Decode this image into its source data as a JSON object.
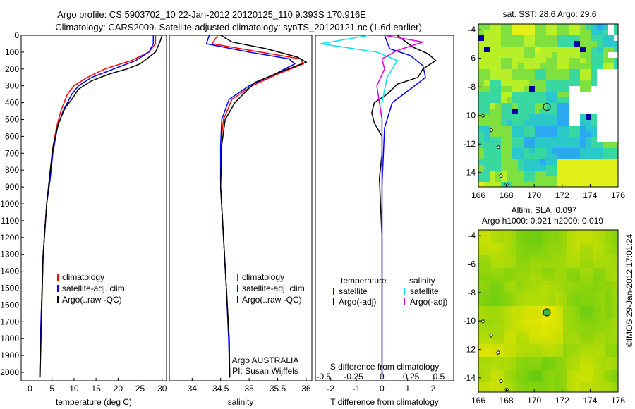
{
  "header": {
    "line1": "Argo profile: CS 5903702_10 22-Jan-2012 20120125_110 9.393S 170.916E",
    "line2": "Climatology: CARS2009. Satellite-adjusted climatology: synTS_20120121.nc (1.6d earlier)"
  },
  "colors": {
    "climatology": "#ff0000",
    "satellite": "#0000ff",
    "argo": "#000000",
    "salinity_sat": "#00e5ee",
    "salinity_argo": "#e000e0"
  },
  "chart_data": [
    {
      "type": "line",
      "xlabel": "temperature (deg C)",
      "ylim": [
        2050,
        0
      ],
      "xlim": [
        -2,
        31
      ],
      "xticks": [
        0,
        5,
        10,
        15,
        20,
        25,
        30
      ],
      "yticks": [
        0,
        100,
        200,
        300,
        400,
        500,
        600,
        700,
        800,
        900,
        1000,
        1100,
        1200,
        1300,
        1400,
        1500,
        1600,
        1700,
        1800,
        1900,
        2000
      ],
      "legend": [
        "climatology",
        "satellite-adj. clim.",
        "Argo(..raw -QC)"
      ],
      "series": [
        {
          "name": "climatology",
          "color": "#ff0000",
          "x": [
            28.5,
            28.5,
            27,
            23,
            17,
            13,
            10,
            8.5,
            7,
            6,
            5,
            4.5,
            3.8,
            3,
            2.5,
            2.2
          ],
          "y": [
            0,
            50,
            100,
            150,
            200,
            250,
            300,
            350,
            450,
            550,
            700,
            850,
            1000,
            1300,
            1700,
            2030
          ]
        },
        {
          "name": "satellite-adj. clim.",
          "color": "#0000ff",
          "x": [
            28,
            28,
            27,
            24,
            19,
            14,
            11,
            9.5,
            7.5,
            6.2,
            5.2,
            4.6,
            3.8,
            3,
            2.5,
            2.2
          ],
          "y": [
            0,
            50,
            100,
            150,
            200,
            250,
            300,
            350,
            450,
            550,
            700,
            850,
            1000,
            1300,
            1700,
            2030
          ]
        },
        {
          "name": "Argo(..raw -QC)",
          "color": "#000000",
          "x": [
            30,
            29.5,
            28.5,
            27,
            25,
            22,
            18,
            14,
            11,
            9.5,
            8,
            6.5,
            5.3,
            4.6,
            3.8,
            3,
            2.6,
            2.3
          ],
          "y": [
            0,
            40,
            100,
            130,
            170,
            200,
            230,
            270,
            320,
            380,
            430,
            520,
            650,
            800,
            1000,
            1300,
            1700,
            2030
          ]
        }
      ]
    },
    {
      "type": "line",
      "xlabel": "salinity",
      "ylim": [
        2050,
        0
      ],
      "xlim": [
        33.6,
        36.1
      ],
      "xticks": [
        34,
        34.5,
        35,
        35.5,
        36
      ],
      "legend": [
        "climatology",
        "satellite-adj. clim.",
        "Argo(..raw -QC)"
      ],
      "annotation": [
        "Argo AUSTRALIA",
        "PI: Susan Wijffels"
      ],
      "series": [
        {
          "name": "climatology",
          "color": "#ff0000",
          "x": [
            34.45,
            34.35,
            35.2,
            35.9,
            35.95,
            35.5,
            35.05,
            34.7,
            34.55,
            34.5,
            34.5,
            34.55,
            34.6,
            34.65,
            34.66
          ],
          "y": [
            0,
            50,
            100,
            140,
            170,
            230,
            300,
            380,
            500,
            650,
            900,
            1200,
            1500,
            1800,
            2030
          ]
        },
        {
          "name": "satellite-adj. clim.",
          "color": "#0000ff",
          "x": [
            34.3,
            34.25,
            35.0,
            35.7,
            35.8,
            35.45,
            35.0,
            34.65,
            34.52,
            34.5,
            34.5,
            34.55,
            34.6,
            34.64,
            34.66
          ],
          "y": [
            0,
            50,
            100,
            140,
            170,
            230,
            300,
            380,
            500,
            650,
            900,
            1200,
            1500,
            1800,
            2030
          ]
        },
        {
          "name": "Argo(..raw -QC)",
          "color": "#000000",
          "x": [
            34.5,
            34.7,
            35.3,
            35.85,
            36.0,
            35.6,
            35.1,
            34.75,
            34.58,
            34.52,
            34.5,
            34.55,
            34.6,
            34.65,
            34.66
          ],
          "y": [
            0,
            40,
            80,
            130,
            160,
            210,
            280,
            400,
            500,
            650,
            900,
            1200,
            1500,
            1800,
            2030
          ]
        }
      ]
    },
    {
      "type": "line",
      "xlabel": "T difference from climatology",
      "x2label": "S difference from climatology",
      "ylim": [
        2050,
        0
      ],
      "xlim": [
        -2.6,
        2.8
      ],
      "xticks": [
        -2,
        -1,
        0,
        1,
        2
      ],
      "x2ticks": [
        "-0.5",
        "-0.25",
        "0",
        "0.25",
        "0.5"
      ],
      "legend_temperature": [
        "temperature",
        "satellite",
        "Argo(-adj)"
      ],
      "legend_salinity": [
        "salinity",
        "satellite",
        "Argo(-adj)"
      ],
      "series": [
        {
          "name": "temperature satellite",
          "color": "#0000ff",
          "x": [
            0.1,
            0.3,
            1.1,
            1.6,
            1.7,
            1.1,
            0.4,
            0.1,
            0.0,
            0.0,
            0.0
          ],
          "y": [
            0,
            80,
            120,
            180,
            250,
            320,
            400,
            550,
            900,
            1500,
            2030
          ]
        },
        {
          "name": "temperature Argo(-adj)",
          "color": "#000000",
          "x": [
            0.6,
            1.2,
            1.8,
            2.1,
            1.6,
            1.4,
            0.6,
            0.2,
            -0.3,
            -0.4,
            -0.3,
            0.0,
            0.0,
            -0.1,
            0.0,
            0.0
          ],
          "y": [
            0,
            70,
            110,
            150,
            200,
            250,
            290,
            350,
            400,
            460,
            520,
            600,
            700,
            850,
            1200,
            2030
          ]
        },
        {
          "name": "salinity satellite",
          "color": "#00e5ee",
          "x": [
            -0.5,
            -2.4,
            -0.2,
            0.6,
            0.2,
            0.0,
            0.0,
            0.0
          ],
          "y": [
            0,
            50,
            100,
            150,
            250,
            400,
            900,
            2030
          ]
        },
        {
          "name": "salinity Argo(-adj)",
          "color": "#e000e0",
          "x": [
            0.1,
            1.6,
            0.6,
            0.0,
            0.1,
            -0.2,
            0.0,
            0.0
          ],
          "y": [
            0,
            40,
            90,
            140,
            200,
            300,
            500,
            2030
          ]
        }
      ]
    },
    {
      "type": "heatmap",
      "title": "sat. SST: 28.6  Argo: 29.6",
      "xlim": [
        166,
        176
      ],
      "ylim": [
        -15,
        -3.6
      ],
      "xticks": [
        166,
        168,
        170,
        172,
        174,
        176
      ],
      "yticks": [
        -4,
        -6,
        -8,
        -10,
        -12,
        -14
      ],
      "marker": {
        "lon": 170.9,
        "lat": -9.4
      }
    },
    {
      "type": "heatmap",
      "title": "Altim. SLA: 0.097",
      "subtitle": "Argo h1000: 0.021  h2000: 0.019",
      "xlim": [
        166,
        176
      ],
      "ylim": [
        -15,
        -3.6
      ],
      "xticks": [
        166,
        168,
        170,
        172,
        174,
        176
      ],
      "yticks": [
        -4,
        -6,
        -8,
        -10,
        -12,
        -14
      ],
      "marker": {
        "lon": 170.9,
        "lat": -9.4
      }
    }
  ],
  "credit": "©IMOS 29-Jan-2012 17:01:24"
}
